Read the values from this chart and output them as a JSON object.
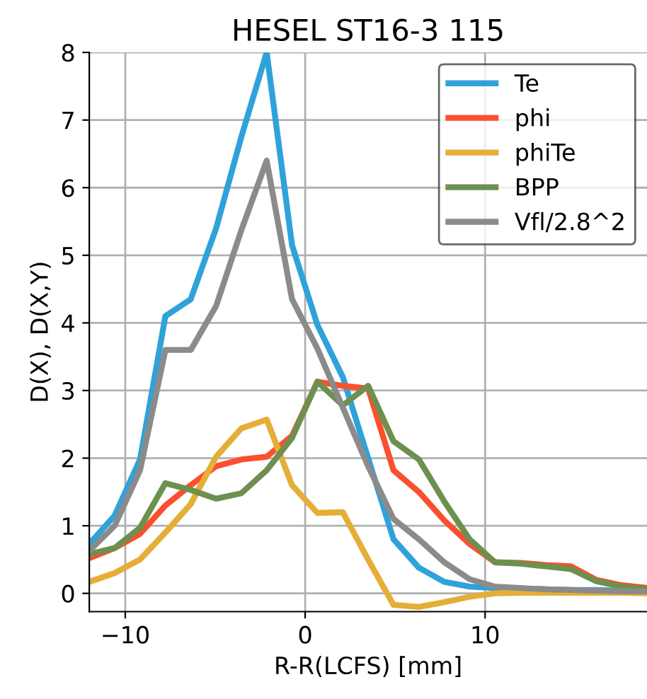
{
  "chart_data": {
    "type": "line",
    "title": "HESEL ST16-3 115",
    "xlabel": "R-R(LCFS) [mm]",
    "ylabel": "D(X), D(X,Y)",
    "x": [
      -12.0,
      -10.59,
      -9.18,
      -7.77,
      -6.36,
      -4.95,
      -3.55,
      -2.14,
      -0.73,
      0.68,
      2.09,
      3.5,
      4.91,
      6.32,
      7.73,
      9.14,
      10.55,
      11.95,
      13.36,
      14.77,
      16.18,
      17.59,
      19.0
    ],
    "series": [
      {
        "name": "Te",
        "color": "#30a2da",
        "values": [
          0.73,
          1.15,
          1.98,
          4.1,
          4.35,
          5.4,
          6.75,
          8.0,
          5.15,
          3.97,
          3.2,
          2.0,
          0.8,
          0.38,
          0.17,
          0.1,
          0.08,
          0.07,
          0.06,
          0.05,
          0.05,
          0.04,
          0.03
        ]
      },
      {
        "name": "phi",
        "color": "#fc4f30",
        "values": [
          0.52,
          0.67,
          0.88,
          1.3,
          1.6,
          1.88,
          1.98,
          2.02,
          2.33,
          3.13,
          3.07,
          3.03,
          1.82,
          1.5,
          1.08,
          0.73,
          0.46,
          0.45,
          0.42,
          0.4,
          0.2,
          0.12,
          0.08
        ]
      },
      {
        "name": "phiTe",
        "color": "#e5ae38",
        "values": [
          0.17,
          0.3,
          0.5,
          0.9,
          1.32,
          2.02,
          2.44,
          2.57,
          1.6,
          1.19,
          1.2,
          0.5,
          -0.17,
          -0.2,
          -0.13,
          -0.05,
          0.0,
          0.01,
          0.01,
          0.01,
          0.01,
          0.01,
          0.0
        ]
      },
      {
        "name": "BPP",
        "color": "#6d904f",
        "values": [
          0.58,
          0.67,
          0.97,
          1.63,
          1.53,
          1.4,
          1.48,
          1.82,
          2.3,
          3.13,
          2.78,
          3.07,
          2.25,
          1.98,
          1.36,
          0.8,
          0.46,
          0.44,
          0.4,
          0.36,
          0.18,
          0.1,
          0.06
        ]
      },
      {
        "name": "Vfl/2.8^2",
        "color": "#8b8b8b",
        "values": [
          0.63,
          1.0,
          1.82,
          3.6,
          3.6,
          4.25,
          5.37,
          6.4,
          4.35,
          3.62,
          2.75,
          1.88,
          1.1,
          0.8,
          0.46,
          0.21,
          0.1,
          0.08,
          0.06,
          0.05,
          0.04,
          0.03,
          0.03
        ]
      }
    ],
    "xlim": [
      -12,
      19
    ],
    "ylim": [
      -0.27,
      8
    ],
    "xticks": [
      -10,
      0,
      10
    ],
    "yticks": [
      0,
      1,
      2,
      3,
      4,
      5,
      6,
      7,
      8
    ],
    "grid": true,
    "legend": "top right",
    "marker": "none",
    "line_style": "solid"
  }
}
